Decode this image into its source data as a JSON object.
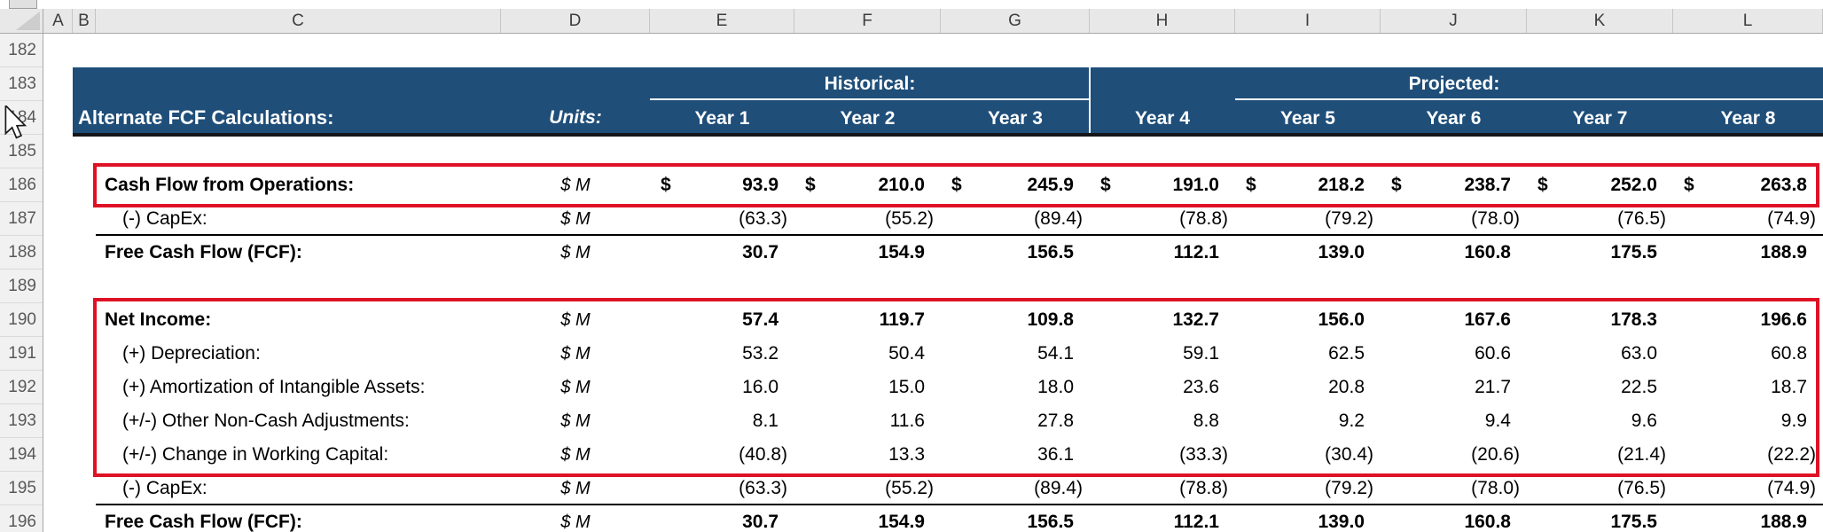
{
  "colors": {
    "banner_blue": "#1F4E79",
    "annotation_red": "#DF1125",
    "header_band_bg": "#E8E8E8"
  },
  "sheet": {
    "column_headers": [
      "A",
      "B",
      "C",
      "D",
      "E",
      "F",
      "G",
      "H",
      "I",
      "J",
      "K",
      "L"
    ],
    "row_numbers": [
      "182",
      "183",
      "184",
      "185",
      "186",
      "187",
      "188",
      "189",
      "190",
      "191",
      "192",
      "193",
      "194",
      "195",
      "196"
    ],
    "banner": {
      "title": "Alternate FCF Calculations:",
      "units_label": "Units:",
      "historical_label": "Historical:",
      "projected_label": "Projected:",
      "year_labels": [
        "Year 1",
        "Year 2",
        "Year 3",
        "Year 4",
        "Year 5",
        "Year 6",
        "Year 7",
        "Year 8"
      ]
    },
    "rows": [
      {
        "row": "186",
        "label": "Cash Flow from Operations:",
        "units": "$ M",
        "bold": true,
        "dollar_signs": true,
        "indent": false,
        "rule_below": false,
        "values": [
          "93.9",
          "210.0",
          "245.9",
          "191.0",
          "218.2",
          "238.7",
          "252.0",
          "263.8"
        ]
      },
      {
        "row": "187",
        "label": "(-) CapEx:",
        "units": "$ M",
        "bold": false,
        "dollar_signs": false,
        "indent": true,
        "rule_below": true,
        "values": [
          "(63.3)",
          "(55.2)",
          "(89.4)",
          "(78.8)",
          "(79.2)",
          "(78.0)",
          "(76.5)",
          "(74.9)"
        ]
      },
      {
        "row": "188",
        "label": "Free Cash Flow (FCF):",
        "units": "$ M",
        "bold": true,
        "dollar_signs": false,
        "indent": false,
        "rule_below": false,
        "values": [
          "30.7",
          "154.9",
          "156.5",
          "112.1",
          "139.0",
          "160.8",
          "175.5",
          "188.9"
        ]
      },
      {
        "row": "190",
        "label": "Net Income:",
        "units": "$ M",
        "bold": true,
        "dollar_signs": false,
        "indent": false,
        "rule_below": false,
        "values": [
          "57.4",
          "119.7",
          "109.8",
          "132.7",
          "156.0",
          "167.6",
          "178.3",
          "196.6"
        ]
      },
      {
        "row": "191",
        "label": "(+) Depreciation:",
        "units": "$ M",
        "bold": false,
        "dollar_signs": false,
        "indent": true,
        "rule_below": false,
        "values": [
          "53.2",
          "50.4",
          "54.1",
          "59.1",
          "62.5",
          "60.6",
          "63.0",
          "60.8"
        ]
      },
      {
        "row": "192",
        "label": "(+) Amortization of Intangible Assets:",
        "units": "$ M",
        "bold": false,
        "dollar_signs": false,
        "indent": true,
        "rule_below": false,
        "values": [
          "16.0",
          "15.0",
          "18.0",
          "23.6",
          "20.8",
          "21.7",
          "22.5",
          "18.7"
        ]
      },
      {
        "row": "193",
        "label": "(+/-) Other Non-Cash Adjustments:",
        "units": "$ M",
        "bold": false,
        "dollar_signs": false,
        "indent": true,
        "rule_below": false,
        "values": [
          "8.1",
          "11.6",
          "27.8",
          "8.8",
          "9.2",
          "9.4",
          "9.6",
          "9.9"
        ]
      },
      {
        "row": "194",
        "label": "(+/-) Change in Working Capital:",
        "units": "$ M",
        "bold": false,
        "dollar_signs": false,
        "indent": true,
        "rule_below": false,
        "values": [
          "(40.8)",
          "13.3",
          "36.1",
          "(33.3)",
          "(30.4)",
          "(20.6)",
          "(21.4)",
          "(22.2)"
        ]
      },
      {
        "row": "195",
        "label": "(-) CapEx:",
        "units": "$ M",
        "bold": false,
        "dollar_signs": false,
        "indent": true,
        "rule_below": true,
        "values": [
          "(63.3)",
          "(55.2)",
          "(89.4)",
          "(78.8)",
          "(79.2)",
          "(78.0)",
          "(76.5)",
          "(74.9)"
        ]
      },
      {
        "row": "196",
        "label": "Free Cash Flow (FCF):",
        "units": "$ M",
        "bold": true,
        "dollar_signs": false,
        "indent": false,
        "rule_below": false,
        "values": [
          "30.7",
          "154.9",
          "156.5",
          "112.1",
          "139.0",
          "160.8",
          "175.5",
          "188.9"
        ]
      }
    ],
    "annotations": [
      {
        "type": "red-box",
        "around": "row 186 (Cash Flow from Operations)"
      },
      {
        "type": "red-box",
        "around": "rows 190-194 (Net Income through Change in Working Capital)"
      }
    ]
  }
}
